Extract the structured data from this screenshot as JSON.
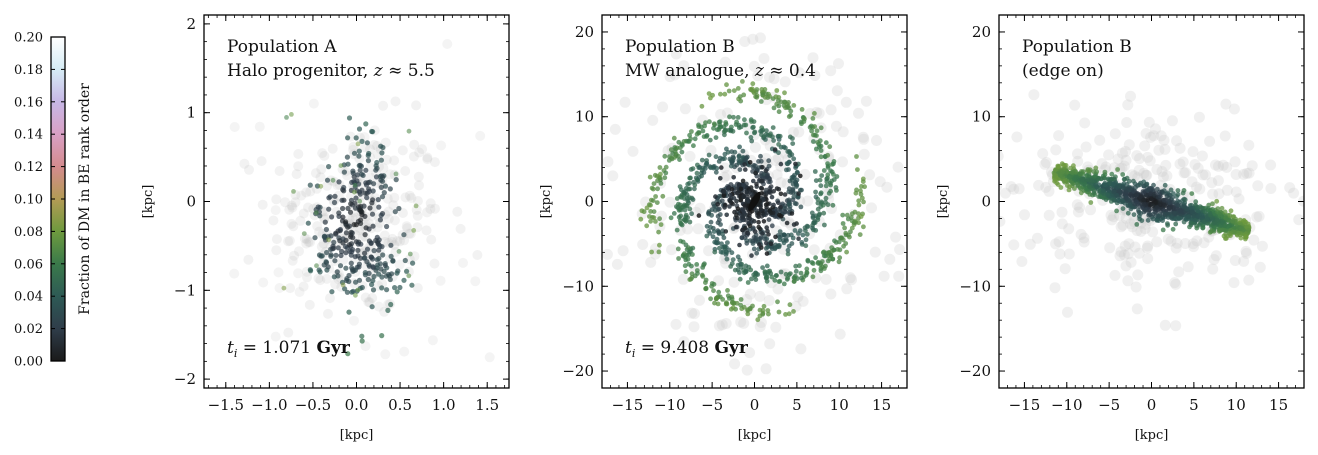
{
  "colorbar": {
    "label": "Fraction of DM in BE rank order",
    "ticks": [
      "0.00",
      "0.02",
      "0.04",
      "0.06",
      "0.08",
      "0.10",
      "0.12",
      "0.14",
      "0.16",
      "0.18",
      "0.20"
    ],
    "range": [
      0,
      0.2
    ],
    "colors": [
      "#1a1a1a",
      "#2f3d4a",
      "#2e5a55",
      "#3a7a4a",
      "#6e9a3e",
      "#b39b55",
      "#d48b8e",
      "#d9a0c4",
      "#c7b7e6",
      "#d6ecf5",
      "#ffffff"
    ]
  },
  "chart_data": [
    {
      "type": "scatter",
      "title": "Population A",
      "subtitle": "Halo progenitor, z ≈ 5.5",
      "time_label": "t_i = 1.071 Gyr",
      "xlabel": "[kpc]",
      "ylabel": "[kpc]",
      "xlim": [
        -1.75,
        1.75
      ],
      "ylim": [
        -2.1,
        2.1
      ],
      "xticks": [
        -1.5,
        -1.0,
        -0.5,
        0.0,
        0.5,
        1.0,
        1.5
      ],
      "xtick_labels": [
        "−1.5",
        "−1.0",
        "−0.5",
        "0.0",
        "0.5",
        "1.0",
        "1.5"
      ],
      "yticks": [
        -2,
        -1,
        0,
        1,
        2
      ],
      "ytick_labels": [
        "−2",
        "−1",
        "0",
        "1",
        "2"
      ],
      "structure": "clumpy",
      "structure_params": {
        "center": [
          0,
          -0.2
        ],
        "spread": [
          0.35,
          0.45
        ],
        "clumps": [
          [
            0.1,
            0.2
          ],
          [
            -0.2,
            -0.4
          ],
          [
            0.15,
            -0.7
          ]
        ]
      }
    },
    {
      "type": "scatter",
      "title": "Population B",
      "subtitle": "MW analogue, z ≈ 0.4",
      "time_label": "t_i = 9.408 Gyr",
      "xlabel": "[kpc]",
      "ylabel": "[kpc]",
      "xlim": [
        -18,
        18
      ],
      "ylim": [
        -22,
        22
      ],
      "xticks": [
        -15,
        -10,
        -5,
        0,
        5,
        10,
        15
      ],
      "xtick_labels": [
        "−15",
        "−10",
        "−5",
        "0",
        "5",
        "10",
        "15"
      ],
      "yticks": [
        -20,
        -10,
        0,
        10,
        20
      ],
      "ytick_labels": [
        "−20",
        "−10",
        "0",
        "10",
        "20"
      ],
      "structure": "spiral",
      "structure_params": {
        "arms": 4,
        "r_max": 12,
        "bar_angle_deg": 60
      }
    },
    {
      "type": "scatter",
      "title": "Population B",
      "subtitle": "(edge on)",
      "time_label": "",
      "xlabel": "[kpc]",
      "ylabel": "[kpc]",
      "xlim": [
        -18,
        18
      ],
      "ylim": [
        -22,
        22
      ],
      "xticks": [
        -15,
        -10,
        -5,
        0,
        5,
        10,
        15
      ],
      "xtick_labels": [
        "−15",
        "−10",
        "−5",
        "0",
        "5",
        "10",
        "15"
      ],
      "yticks": [
        -20,
        -10,
        0,
        10,
        20
      ],
      "ytick_labels": [
        "−20",
        "−10",
        "0",
        "10",
        "20"
      ],
      "structure": "edge-on-disk",
      "structure_params": {
        "tilt_deg": -17,
        "half_length": 12,
        "thickness": 1.0
      }
    }
  ]
}
